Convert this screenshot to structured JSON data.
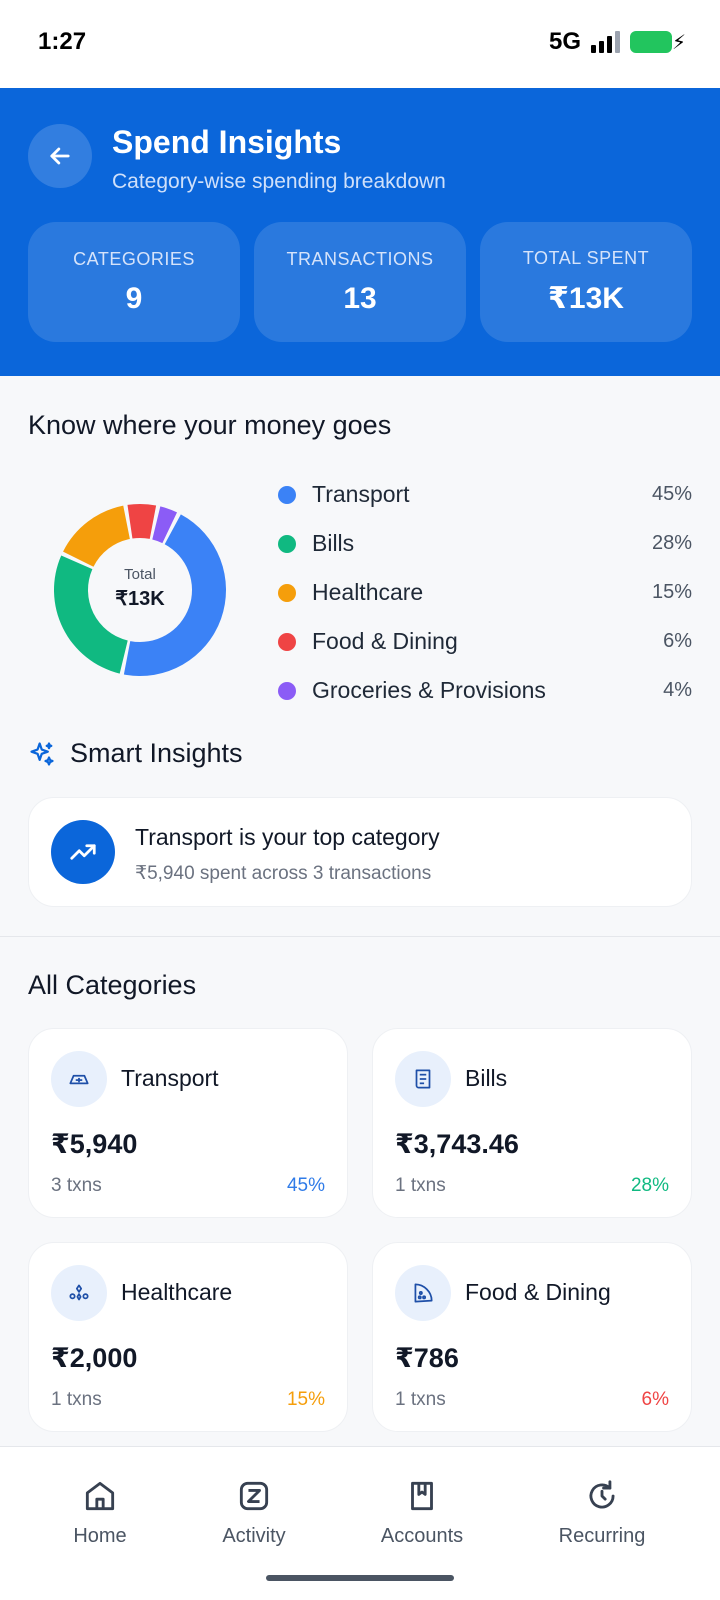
{
  "status_bar": {
    "time": "1:27",
    "network": "5G"
  },
  "header": {
    "title": "Spend Insights",
    "subtitle": "Category-wise spending breakdown",
    "stats": [
      {
        "label": "CATEGORIES",
        "value": "9"
      },
      {
        "label": "TRANSACTIONS",
        "value": "13"
      },
      {
        "label": "TOTAL SPENT",
        "value": "₹13K"
      }
    ]
  },
  "breakdown": {
    "title": "Know where your money goes",
    "donut": {
      "center_label": "Total",
      "center_value": "₹13K"
    },
    "legend": [
      {
        "label": "Transport",
        "pct": "45%",
        "value": 45,
        "color": "#3B82F6"
      },
      {
        "label": "Bills",
        "pct": "28%",
        "value": 28,
        "color": "#10B981"
      },
      {
        "label": "Healthcare",
        "pct": "15%",
        "value": 15,
        "color": "#F59E0B"
      },
      {
        "label": "Food & Dining",
        "pct": "6%",
        "value": 6,
        "color": "#EF4444"
      },
      {
        "label": "Groceries & Provisions",
        "pct": "4%",
        "value": 4,
        "color": "#8B5CF6"
      }
    ]
  },
  "smart_insights": {
    "title": "Smart Insights",
    "card": {
      "title": "Transport is your top category",
      "subtitle": "₹5,940 spent across 3 transactions"
    }
  },
  "categories": {
    "title": "All Categories",
    "items": [
      {
        "name": "Transport",
        "amount": "₹5,940",
        "txns": "3 txns",
        "pct": "45%",
        "pct_color": "#2F7BE8",
        "icon": "transport-icon"
      },
      {
        "name": "Bills",
        "amount": "₹3,743.46",
        "txns": "1 txns",
        "pct": "28%",
        "pct_color": "#10B981",
        "icon": "bill-icon"
      },
      {
        "name": "Healthcare",
        "amount": "₹2,000",
        "txns": "1 txns",
        "pct": "15%",
        "pct_color": "#F59E0B",
        "icon": "healthcare-icon"
      },
      {
        "name": "Food & Dining",
        "amount": "₹786",
        "txns": "1 txns",
        "pct": "6%",
        "pct_color": "#EF4444",
        "icon": "food-icon"
      }
    ]
  },
  "nav": {
    "items": [
      {
        "label": "Home",
        "icon": "home-icon"
      },
      {
        "label": "Activity",
        "icon": "activity-icon"
      },
      {
        "label": "Accounts",
        "icon": "accounts-icon"
      },
      {
        "label": "Recurring",
        "icon": "recurring-icon"
      }
    ]
  }
}
